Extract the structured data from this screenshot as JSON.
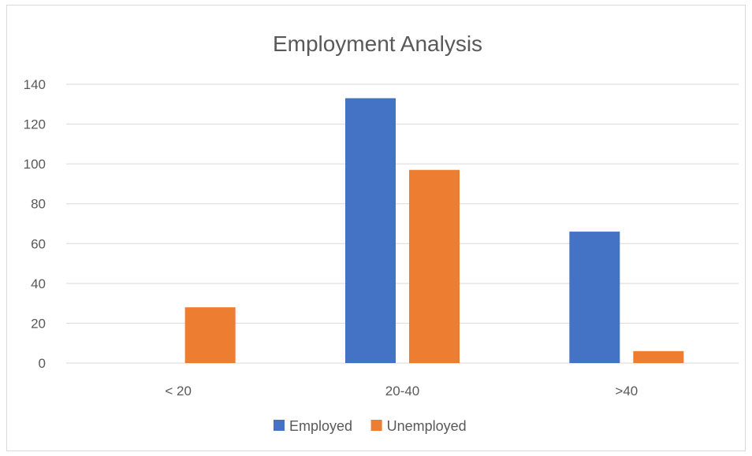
{
  "chart_data": {
    "type": "bar",
    "title": "Employment Analysis",
    "xlabel": "",
    "ylabel": "",
    "categories": [
      "< 20",
      "20-40",
      ">40"
    ],
    "series": [
      {
        "name": "Employed",
        "values": [
          0,
          133,
          66
        ],
        "color": "#4472C4"
      },
      {
        "name": "Unemployed",
        "values": [
          28,
          97,
          6
        ],
        "color": "#ED7D31"
      }
    ],
    "ylim": [
      0,
      140
    ],
    "yticks": [
      0,
      20,
      40,
      60,
      80,
      100,
      120,
      140
    ],
    "grid": true,
    "legend_position": "bottom"
  }
}
